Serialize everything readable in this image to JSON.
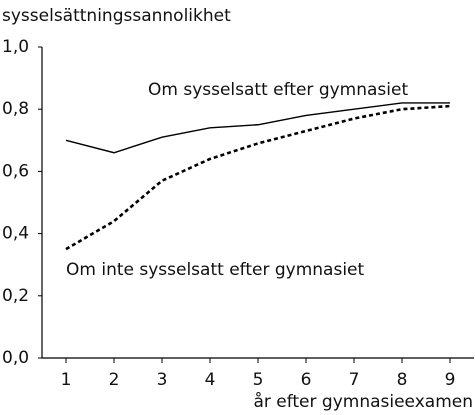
{
  "chart_data": {
    "type": "line",
    "title": "sysselsättningssannolikhet",
    "x_label": "år efter gymnasieexamen",
    "x": [
      1,
      2,
      3,
      4,
      5,
      6,
      7,
      8,
      9
    ],
    "series": [
      {
        "name": "Om sysselsatt efter gymnasiet",
        "color": "#000000",
        "style": "solid",
        "values": [
          0.7,
          0.66,
          0.71,
          0.74,
          0.75,
          0.78,
          0.8,
          0.82,
          0.82
        ]
      },
      {
        "name": "Om inte sysselsatt efter gymnasiet",
        "color": "#000000",
        "style": "dashed",
        "values": [
          0.35,
          0.44,
          0.57,
          0.64,
          0.69,
          0.73,
          0.77,
          0.8,
          0.81
        ]
      }
    ],
    "xlim": [
      0.5,
      9.5
    ],
    "xticks": [
      1,
      2,
      3,
      4,
      5,
      6,
      7,
      8,
      9
    ],
    "ylim": [
      0,
      1.0
    ],
    "yticks": [
      {
        "value": 0,
        "label": "0,0"
      },
      {
        "value": 0.2,
        "label": "0,2"
      },
      {
        "value": 0.4,
        "label": "0,4"
      },
      {
        "value": 0.6,
        "label": "0,6"
      },
      {
        "value": 0.8,
        "label": "0,8"
      },
      {
        "value": 1.0,
        "label": "1,0"
      }
    ],
    "grid": false
  }
}
